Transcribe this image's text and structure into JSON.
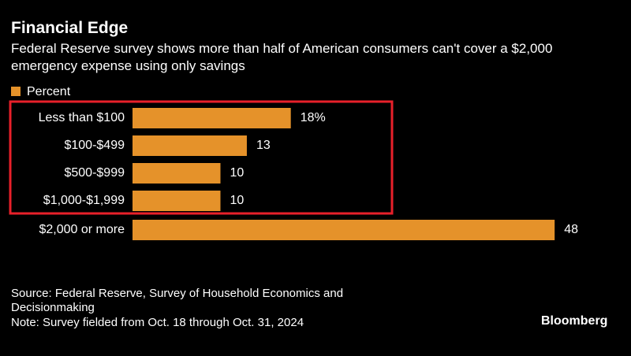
{
  "chart_data": {
    "type": "bar",
    "orientation": "horizontal",
    "title": "Financial Edge",
    "subtitle": "Federal Reserve survey shows more than half of American consumers can't cover a $2,000 emergency expense using only savings",
    "categories": [
      "Less than $100",
      "$100-$499",
      "$500-$999",
      "$1,000-$1,999",
      "$2,000 or more"
    ],
    "series": [
      {
        "name": "Percent",
        "color": "#e5922a",
        "values": [
          18,
          13,
          10,
          10,
          48
        ],
        "value_labels": [
          "18%",
          "13",
          "10",
          "10",
          "48"
        ]
      }
    ],
    "source": "Source: Federal Reserve, Survey of Household Economics and Decisionmaking",
    "note": "Note: Survey fielded from Oct. 18 through Oct. 31, 2024",
    "brand": "Bloomberg"
  }
}
